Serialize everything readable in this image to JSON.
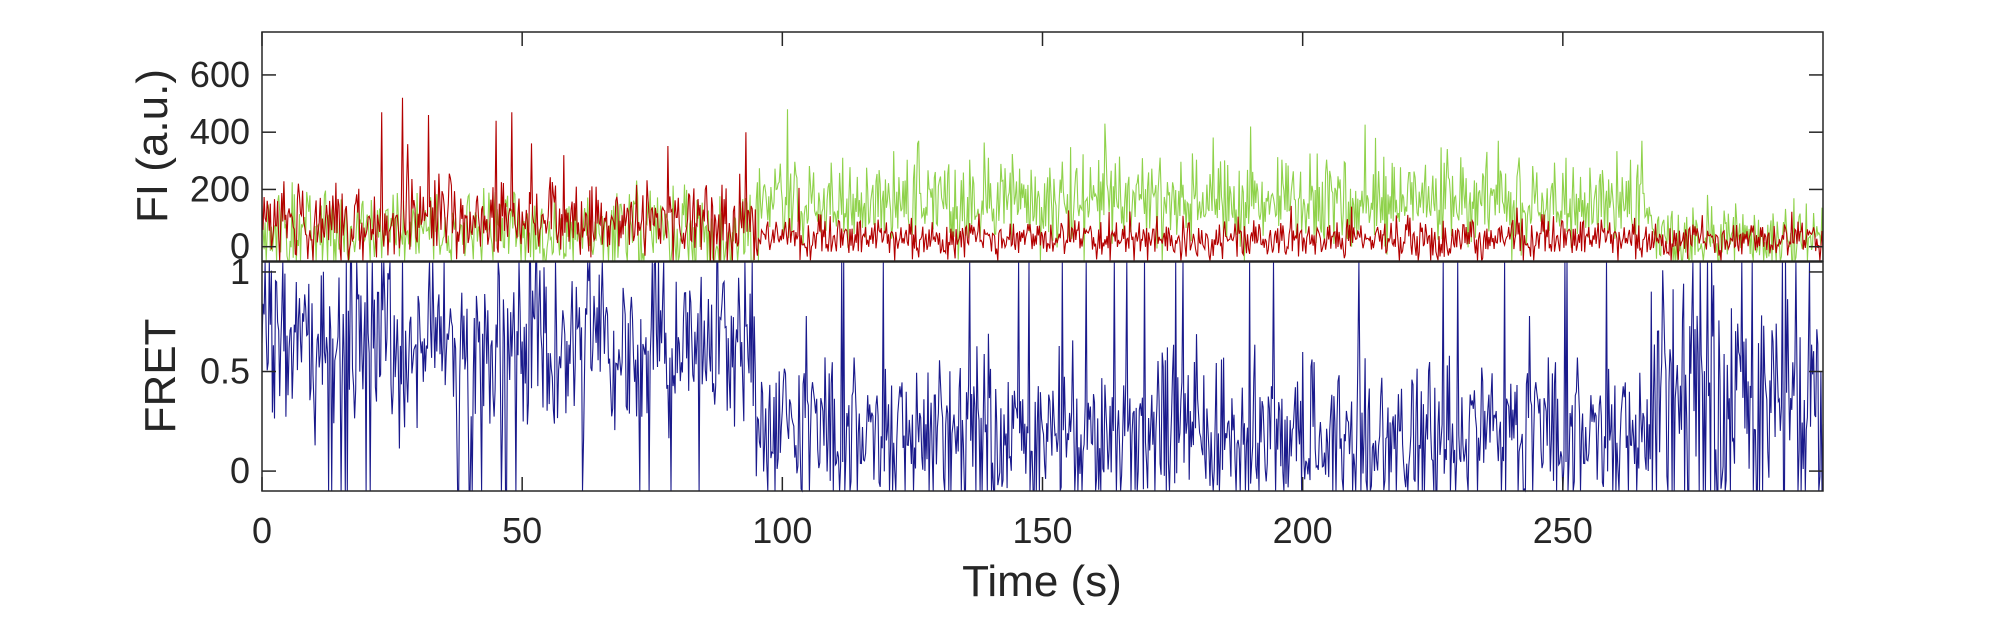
{
  "chart_data": [
    {
      "type": "line",
      "panel": "intensity",
      "ylabel": "FI (a.u.)",
      "ylim": [
        -50,
        750
      ],
      "xlim": [
        0,
        300
      ],
      "yticks": [
        0,
        200,
        400,
        600
      ],
      "grid": false,
      "legend": "none",
      "series_colors": [
        "#8fd24b",
        "#b30000"
      ],
      "segments": [
        {
          "from": 0,
          "to": 95,
          "green_mean": 55,
          "green_noise": 70,
          "red_mean": 95,
          "red_noise": 65
        },
        {
          "from": 95,
          "to": 267,
          "green_mean": 165,
          "green_noise": 75,
          "red_mean": 30,
          "red_noise": 35
        },
        {
          "from": 267,
          "to": 300,
          "green_mean": 35,
          "green_noise": 55,
          "red_mean": 25,
          "red_noise": 35
        }
      ],
      "green_peaks": [
        [
          101,
          480
        ],
        [
          162,
          430
        ],
        [
          190,
          420
        ],
        [
          214,
          380
        ],
        [
          126,
          360
        ]
      ],
      "red_peaks": [
        [
          23,
          470
        ],
        [
          27,
          520
        ],
        [
          32,
          460
        ],
        [
          45,
          440
        ],
        [
          48,
          470
        ],
        [
          58,
          320
        ],
        [
          93,
          400
        ]
      ]
    },
    {
      "type": "line",
      "panel": "fret",
      "xlabel": "Time (s)",
      "ylabel": "FRET",
      "ylim": [
        -0.1,
        1.05
      ],
      "xlim": [
        0,
        300
      ],
      "xticks": [
        0,
        50,
        100,
        150,
        200,
        250
      ],
      "yticks": [
        0,
        0.5,
        1
      ],
      "ytick_labels": [
        "0",
        "0.5",
        "1"
      ],
      "grid": false,
      "legend": "none",
      "series_colors": [
        "#1a1a8c"
      ],
      "segments": [
        {
          "from": 0,
          "to": 95,
          "mean": 0.62,
          "noise": 0.22
        },
        {
          "from": 95,
          "to": 267,
          "mean": 0.18,
          "noise": 0.2
        },
        {
          "from": 267,
          "to": 300,
          "mean": 0.35,
          "noise": 0.35
        }
      ],
      "clip_fraction": 0.06
    }
  ]
}
